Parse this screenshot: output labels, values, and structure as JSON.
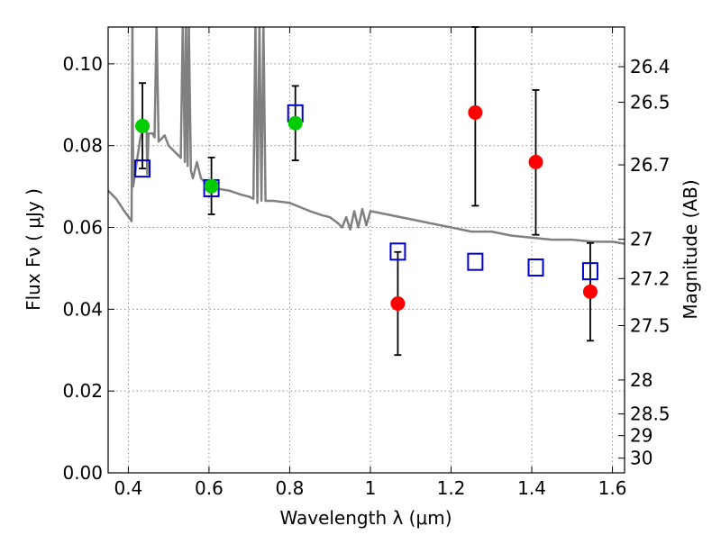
{
  "chart_data": {
    "type": "scatter",
    "title": "",
    "xlabel": "Wavelength  λ (μm)",
    "ylabel": "Flux  Fν  ( μJy )",
    "ylabel_right": "Magnitude (AB)",
    "xlim": [
      0.35,
      1.63
    ],
    "ylim": [
      0.0,
      0.109
    ],
    "grid": true,
    "x_ticks": [
      0.4,
      0.6,
      0.8,
      1.0,
      1.2,
      1.4,
      1.6
    ],
    "x_tick_labels": [
      "0.4",
      "0.6",
      "0.8",
      "1",
      "1.2",
      "1.4",
      "1.6"
    ],
    "y_ticks": [
      0.0,
      0.02,
      0.04,
      0.06,
      0.08,
      0.1
    ],
    "y_tick_labels": [
      "0.00",
      "0.02",
      "0.04",
      "0.06",
      "0.08",
      "0.10"
    ],
    "right_ticks": [
      {
        "label": "26.4",
        "flux": 0.0993
      },
      {
        "label": "26.5",
        "flux": 0.0906
      },
      {
        "label": "26.7",
        "flux": 0.0753
      },
      {
        "label": "27",
        "flux": 0.0571
      },
      {
        "label": "27.2",
        "flux": 0.0475
      },
      {
        "label": "27.5",
        "flux": 0.036
      },
      {
        "label": "28",
        "flux": 0.0227
      },
      {
        "label": "28.5",
        "flux": 0.0144
      },
      {
        "label": "29",
        "flux": 0.0091
      },
      {
        "label": "30",
        "flux": 0.0036
      }
    ],
    "series": [
      {
        "marker": "circle",
        "color": "#00cc00",
        "points": [
          {
            "x": 0.435,
            "y": 0.0848,
            "err_low": 0.0744,
            "err_high": 0.0953
          },
          {
            "x": 0.606,
            "y": 0.0701,
            "err_low": 0.0632,
            "err_high": 0.0771
          },
          {
            "x": 0.814,
            "y": 0.0855,
            "err_low": 0.0764,
            "err_high": 0.0946
          }
        ]
      },
      {
        "marker": "circle",
        "color": "#ff0000",
        "points": [
          {
            "x": 1.068,
            "y": 0.0414,
            "err_low": 0.0288,
            "err_high": 0.054
          },
          {
            "x": 1.26,
            "y": 0.0881,
            "err_low": 0.0653,
            "err_high": 0.109
          },
          {
            "x": 1.41,
            "y": 0.076,
            "err_low": 0.0582,
            "err_high": 0.0936
          },
          {
            "x": 1.545,
            "y": 0.0443,
            "err_low": 0.0323,
            "err_high": 0.0562
          }
        ]
      },
      {
        "marker": "open-square",
        "color": "#0000cc",
        "points": [
          {
            "x": 0.435,
            "y": 0.0744
          },
          {
            "x": 0.606,
            "y": 0.0696
          },
          {
            "x": 0.814,
            "y": 0.0879
          },
          {
            "x": 1.068,
            "y": 0.0541
          },
          {
            "x": 1.26,
            "y": 0.0516
          },
          {
            "x": 1.41,
            "y": 0.0502
          },
          {
            "x": 1.545,
            "y": 0.0493
          }
        ]
      }
    ],
    "model_spectrum": {
      "color": "#808080",
      "points": [
        [
          0.35,
          0.069
        ],
        [
          0.37,
          0.067
        ],
        [
          0.39,
          0.064
        ],
        [
          0.405,
          0.062
        ],
        [
          0.408,
          0.0615
        ],
        [
          0.41,
          0.11
        ],
        [
          0.412,
          0.07
        ],
        [
          0.415,
          0.072
        ],
        [
          0.43,
          0.082
        ],
        [
          0.44,
          0.085
        ],
        [
          0.445,
          0.086
        ],
        [
          0.447,
          0.073
        ],
        [
          0.45,
          0.083
        ],
        [
          0.46,
          0.083
        ],
        [
          0.465,
          0.082
        ],
        [
          0.47,
          0.11
        ],
        [
          0.475,
          0.081
        ],
        [
          0.49,
          0.0825
        ],
        [
          0.5,
          0.08
        ],
        [
          0.52,
          0.078
        ],
        [
          0.53,
          0.077
        ],
        [
          0.535,
          0.11
        ],
        [
          0.54,
          0.076
        ],
        [
          0.543,
          0.11
        ],
        [
          0.547,
          0.075
        ],
        [
          0.55,
          0.11
        ],
        [
          0.555,
          0.074
        ],
        [
          0.56,
          0.072
        ],
        [
          0.57,
          0.076
        ],
        [
          0.58,
          0.072
        ],
        [
          0.6,
          0.07
        ],
        [
          0.62,
          0.0695
        ],
        [
          0.65,
          0.069
        ],
        [
          0.68,
          0.068
        ],
        [
          0.7,
          0.0675
        ],
        [
          0.71,
          0.067
        ],
        [
          0.715,
          0.11
        ],
        [
          0.72,
          0.066
        ],
        [
          0.725,
          0.11
        ],
        [
          0.73,
          0.0665
        ],
        [
          0.735,
          0.11
        ],
        [
          0.74,
          0.0665
        ],
        [
          0.76,
          0.0665
        ],
        [
          0.8,
          0.066
        ],
        [
          0.85,
          0.064
        ],
        [
          0.88,
          0.063
        ],
        [
          0.9,
          0.0625
        ],
        [
          0.92,
          0.061
        ],
        [
          0.93,
          0.06
        ],
        [
          0.94,
          0.0625
        ],
        [
          0.95,
          0.0595
        ],
        [
          0.96,
          0.064
        ],
        [
          0.97,
          0.06
        ],
        [
          0.98,
          0.0645
        ],
        [
          0.99,
          0.0605
        ],
        [
          1.0,
          0.064
        ],
        [
          1.05,
          0.063
        ],
        [
          1.1,
          0.062
        ],
        [
          1.15,
          0.061
        ],
        [
          1.2,
          0.06
        ],
        [
          1.25,
          0.059
        ],
        [
          1.3,
          0.059
        ],
        [
          1.35,
          0.058
        ],
        [
          1.4,
          0.0575
        ],
        [
          1.45,
          0.057
        ],
        [
          1.5,
          0.057
        ],
        [
          1.55,
          0.0565
        ],
        [
          1.6,
          0.0565
        ],
        [
          1.63,
          0.056
        ]
      ]
    }
  }
}
